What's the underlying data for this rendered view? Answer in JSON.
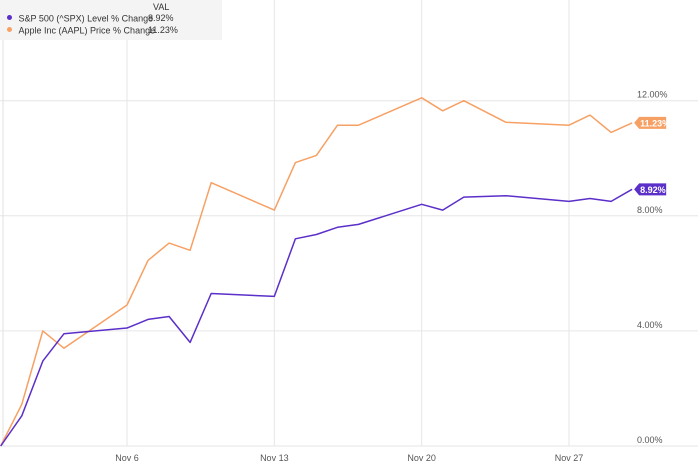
{
  "legend": {
    "header": "VAL",
    "entries": [
      {
        "label": "S&P 500 (^SPX) Level % Change",
        "value": "8.92%",
        "color": "#5b2fc9"
      },
      {
        "label": "Apple Inc (AAPL) Price % Change",
        "value": "11.23%",
        "color": "#f7a064"
      }
    ]
  },
  "chart_data": {
    "type": "line",
    "x_ticks": [
      "Nov 6",
      "Nov 13",
      "Nov 20",
      "Nov 27"
    ],
    "y_ticks": [
      "0.00%",
      "4.00%",
      "8.00%",
      "12.00%"
    ],
    "ylim": [
      0,
      15.5
    ],
    "grid": true,
    "legend_position": "top-left",
    "series": [
      {
        "name": "S&P 500 (^SPX) Level % Change",
        "color": "#5b2fc9",
        "end_label": "8.92%",
        "x": [
          "2023-10-31",
          "2023-11-01",
          "2023-11-02",
          "2023-11-03",
          "2023-11-06",
          "2023-11-07",
          "2023-11-08",
          "2023-11-09",
          "2023-11-10",
          "2023-11-13",
          "2023-11-14",
          "2023-11-15",
          "2023-11-16",
          "2023-11-17",
          "2023-11-20",
          "2023-11-21",
          "2023-11-22",
          "2023-11-24",
          "2023-11-27",
          "2023-11-28",
          "2023-11-29",
          "2023-11-30"
        ],
        "values": [
          0.0,
          1.05,
          2.95,
          3.9,
          4.1,
          4.4,
          4.5,
          3.6,
          5.3,
          5.2,
          7.2,
          7.35,
          7.6,
          7.7,
          8.4,
          8.2,
          8.65,
          8.7,
          8.5,
          8.6,
          8.5,
          8.92
        ]
      },
      {
        "name": "Apple Inc (AAPL) Price % Change",
        "color": "#f7a064",
        "end_label": "11.23%",
        "x": [
          "2023-10-31",
          "2023-11-01",
          "2023-11-02",
          "2023-11-03",
          "2023-11-06",
          "2023-11-07",
          "2023-11-08",
          "2023-11-09",
          "2023-11-10",
          "2023-11-13",
          "2023-11-14",
          "2023-11-15",
          "2023-11-16",
          "2023-11-17",
          "2023-11-20",
          "2023-11-21",
          "2023-11-22",
          "2023-11-24",
          "2023-11-27",
          "2023-11-28",
          "2023-11-29",
          "2023-11-30"
        ],
        "values": [
          0.0,
          1.45,
          4.0,
          3.4,
          4.9,
          6.45,
          7.05,
          6.8,
          9.15,
          8.2,
          9.85,
          10.1,
          11.15,
          11.15,
          12.1,
          11.65,
          12.0,
          11.25,
          11.15,
          11.5,
          10.9,
          11.23
        ]
      }
    ]
  }
}
